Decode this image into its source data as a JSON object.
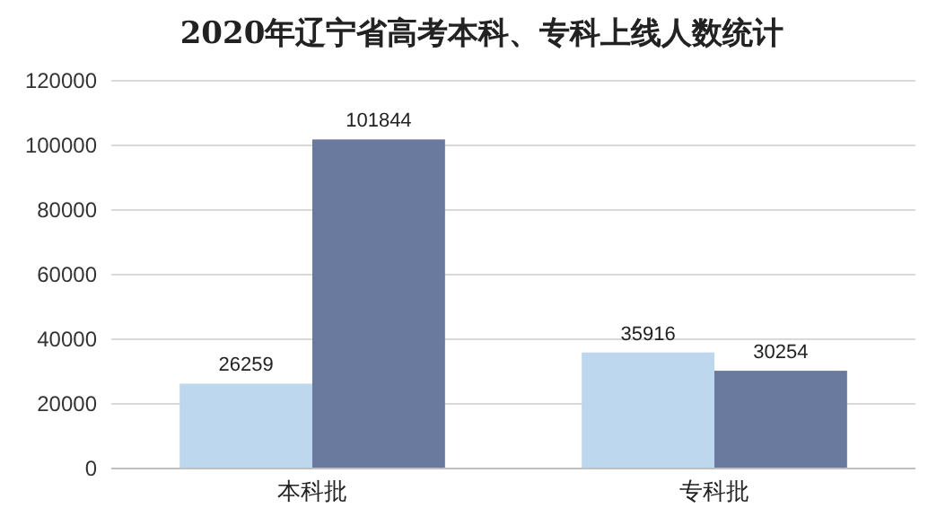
{
  "chart_data": {
    "type": "bar",
    "title": "2020年辽宁省高考本科、专科上线人数统计",
    "categories": [
      "本科批",
      "专科批"
    ],
    "series": [
      {
        "color": "#bdd7ee",
        "values": [
          26259,
          35916
        ]
      },
      {
        "color": "#6a7a9e",
        "values": [
          101844,
          30254
        ]
      }
    ],
    "ylim": [
      0,
      120000
    ],
    "yticks": [
      0,
      20000,
      40000,
      60000,
      80000,
      100000,
      120000
    ],
    "grid": "y",
    "data_labels": true
  }
}
